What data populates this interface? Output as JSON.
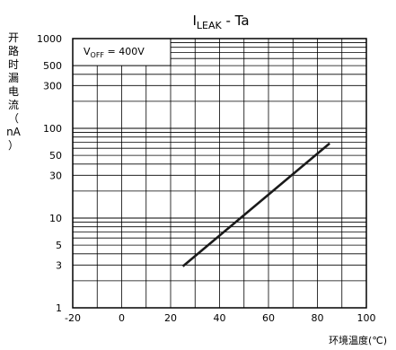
{
  "chart_data": {
    "type": "line",
    "title_main": "I",
    "title_sub": "LEAK",
    "title_rest": " - Ta",
    "ylabel_chars": [
      "开",
      "路",
      "时",
      "漏",
      "电",
      "流",
      "（",
      "nA",
      "）"
    ],
    "xlabel": "环境温度(℃)",
    "annotation_main": "V",
    "annotation_sub": "OFF",
    "annotation_rest": " = 400V",
    "x_scale": "linear",
    "y_scale": "log",
    "xlim": [
      -20,
      100
    ],
    "ylim": [
      1,
      1000
    ],
    "grid": true,
    "x_ticks": [
      -20,
      0,
      20,
      40,
      60,
      80,
      100
    ],
    "x_tick_labels": [
      "-20",
      "0",
      "20",
      "40",
      "60",
      "80",
      "100"
    ],
    "y_ticks": [
      1,
      3,
      5,
      10,
      30,
      50,
      100,
      300,
      500,
      1000
    ],
    "y_tick_labels": [
      "1",
      "3",
      "5",
      "10",
      "30",
      "50",
      "100",
      "300",
      "500",
      "1000"
    ],
    "series": [
      {
        "x": [
          25,
          85
        ],
        "y": [
          2.9,
          68
        ]
      }
    ],
    "line_color": "#1a1a1a"
  }
}
